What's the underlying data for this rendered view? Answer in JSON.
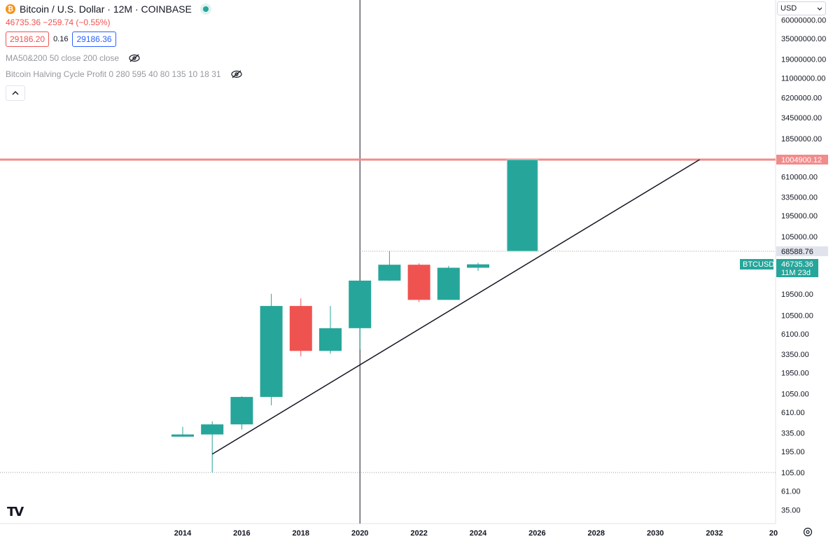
{
  "header": {
    "coin_symbol": "₿",
    "title": "Bitcoin / U.S. Dollar · 12M · COINBASE",
    "price_line": "46735.36  −259.74  (−0.55%)",
    "sell_price": "29186.20",
    "spread": "0.16",
    "buy_price": "29186.36"
  },
  "indicators": [
    {
      "label": "MA50&200 50 close 200 close",
      "icon": "eye-off-icon"
    },
    {
      "label": "Bitcoin Halving Cycle Profit 0 280 595 40 80 135 10 18 31",
      "icon": "eye-off-icon"
    }
  ],
  "controls": {
    "currency": "USD",
    "collapse_icon": "chevron-up-icon",
    "logo": "TV",
    "settings_icon": "gear-icon"
  },
  "colors": {
    "up": "#26a69a",
    "down": "#ef5350",
    "hline": "#f28b8b",
    "trend": "#131722"
  },
  "chart_data": {
    "type": "candlestick",
    "scale": "log",
    "x_ticks": [
      "2014",
      "2016",
      "2018",
      "2020",
      "2022",
      "2024",
      "2026",
      "2028",
      "2030",
      "2032",
      "20"
    ],
    "y_ticks": [
      "60000000.00",
      "35000000.00",
      "19000000.00",
      "11000000.00",
      "6200000.00",
      "3450000.00",
      "1850000.00",
      "610000.00",
      "335000.00",
      "195000.00",
      "105000.00",
      "19500.00",
      "10500.00",
      "6100.00",
      "3350.00",
      "1950.00",
      "1050.00",
      "610.00",
      "335.00",
      "195.00",
      "105.00",
      "61.00",
      "35.00"
    ],
    "candles": [
      {
        "year": 2014,
        "open": 300,
        "high": 400,
        "low": 300,
        "close": 320
      },
      {
        "year": 2015,
        "open": 320,
        "high": 470,
        "low": 105,
        "close": 430
      },
      {
        "year": 2016,
        "open": 430,
        "high": 980,
        "low": 370,
        "close": 960
      },
      {
        "year": 2017,
        "open": 960,
        "high": 19700,
        "low": 750,
        "close": 13800
      },
      {
        "year": 2018,
        "open": 13800,
        "high": 17200,
        "low": 3150,
        "close": 3700
      },
      {
        "year": 2019,
        "open": 3700,
        "high": 13800,
        "low": 3400,
        "close": 7200
      },
      {
        "year": 2020,
        "open": 7200,
        "high": 29000,
        "low": 3850,
        "close": 29000
      },
      {
        "year": 2021,
        "open": 29000,
        "high": 69000,
        "low": 28800,
        "close": 46200
      },
      {
        "year": 2022,
        "open": 46200,
        "high": 48200,
        "low": 15500,
        "close": 16500
      },
      {
        "year": 2023,
        "open": 16500,
        "high": 44700,
        "low": 16500,
        "close": 42300
      },
      {
        "year": 2024,
        "open": 42300,
        "high": 48900,
        "low": 38500,
        "close": 46735
      }
    ],
    "projection": {
      "year": 2025.5,
      "open": 68588.76,
      "close": 1004900.12,
      "color": "up"
    },
    "horizontal_lines": [
      {
        "value": 1004900.12,
        "label": "1004900.12",
        "style": "solid"
      },
      {
        "value": 68588.76,
        "label": "68588.76",
        "style": "dotted"
      },
      {
        "value": 105,
        "style": "dotted"
      }
    ],
    "trendline": {
      "from": {
        "year": 2015,
        "value": 180
      },
      "to": {
        "year": 2031.5,
        "value": 1004900.12
      }
    },
    "vertical_line": {
      "year": 2020
    },
    "last_price": {
      "symbol": "BTCUSD",
      "value": "46735.36",
      "countdown": "11M 23d"
    }
  }
}
